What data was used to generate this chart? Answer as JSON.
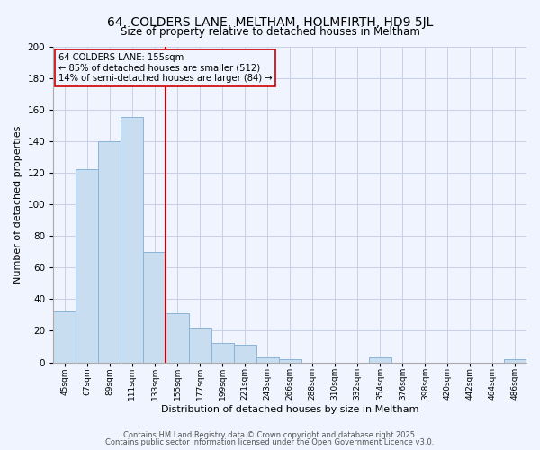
{
  "title": "64, COLDERS LANE, MELTHAM, HOLMFIRTH, HD9 5JL",
  "subtitle": "Size of property relative to detached houses in Meltham",
  "xlabel": "Distribution of detached houses by size in Meltham",
  "ylabel": "Number of detached properties",
  "bar_color": "#c8ddf0",
  "bar_edge_color": "#8ab4d8",
  "vline_x_index": 5,
  "vline_color": "#cc0000",
  "categories": [
    "45sqm",
    "67sqm",
    "89sqm",
    "111sqm",
    "133sqm",
    "155sqm",
    "177sqm",
    "199sqm",
    "221sqm",
    "243sqm",
    "266sqm",
    "288sqm",
    "310sqm",
    "332sqm",
    "354sqm",
    "376sqm",
    "398sqm",
    "420sqm",
    "442sqm",
    "464sqm",
    "486sqm"
  ],
  "values": [
    32,
    122,
    140,
    155,
    70,
    31,
    22,
    12,
    11,
    3,
    2,
    0,
    0,
    0,
    3,
    0,
    0,
    0,
    0,
    0,
    2
  ],
  "ylim": [
    0,
    200
  ],
  "yticks": [
    0,
    20,
    40,
    60,
    80,
    100,
    120,
    140,
    160,
    180,
    200
  ],
  "ann_line1": "64 COLDERS LANE: 155sqm",
  "ann_line2": "← 85% of detached houses are smaller (512)",
  "ann_line3": "14% of semi-detached houses are larger (84) →",
  "footer1": "Contains HM Land Registry data © Crown copyright and database right 2025.",
  "footer2": "Contains public sector information licensed under the Open Government Licence v3.0.",
  "background_color": "#f0f4ff",
  "grid_color": "#c8d0e8"
}
